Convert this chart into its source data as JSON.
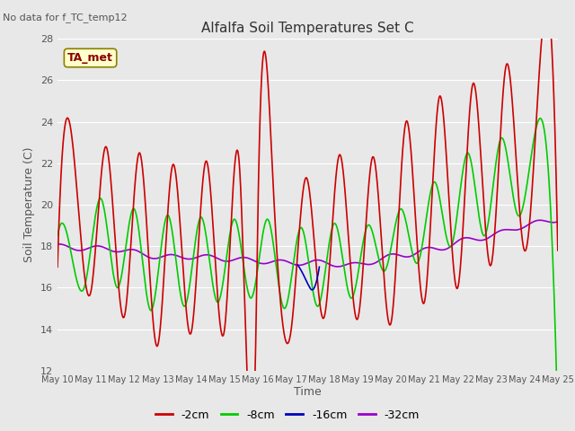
{
  "title": "Alfalfa Soil Temperatures Set C",
  "subtitle": "No data for f_TC_temp12",
  "xlabel": "Time",
  "ylabel": "Soil Temperature (C)",
  "ylim": [
    12,
    28
  ],
  "xlim": [
    0,
    15
  ],
  "background_color": "#e8e8e8",
  "annotation_text": "TA_met",
  "annotation_box_color": "#ffffcc",
  "annotation_border_color": "#8b0000",
  "xtick_labels": [
    "May 10",
    "May 11",
    "May 12",
    "May 13",
    "May 14",
    "May 15",
    "May 16",
    "May 17",
    "May 18",
    "May 19",
    "May 20",
    "May 21",
    "May 22",
    "May 23",
    "May 24",
    "May 25"
  ],
  "ytick_labels": [
    12,
    14,
    16,
    18,
    20,
    22,
    24,
    26,
    28
  ],
  "color_red": "#cc0000",
  "color_green": "#00cc00",
  "color_blue": "#0000bb",
  "color_purple": "#9900cc",
  "label_2cm": "-2cm",
  "label_8cm": "-8cm",
  "label_16cm": "-16cm",
  "label_32cm": "-32cm"
}
